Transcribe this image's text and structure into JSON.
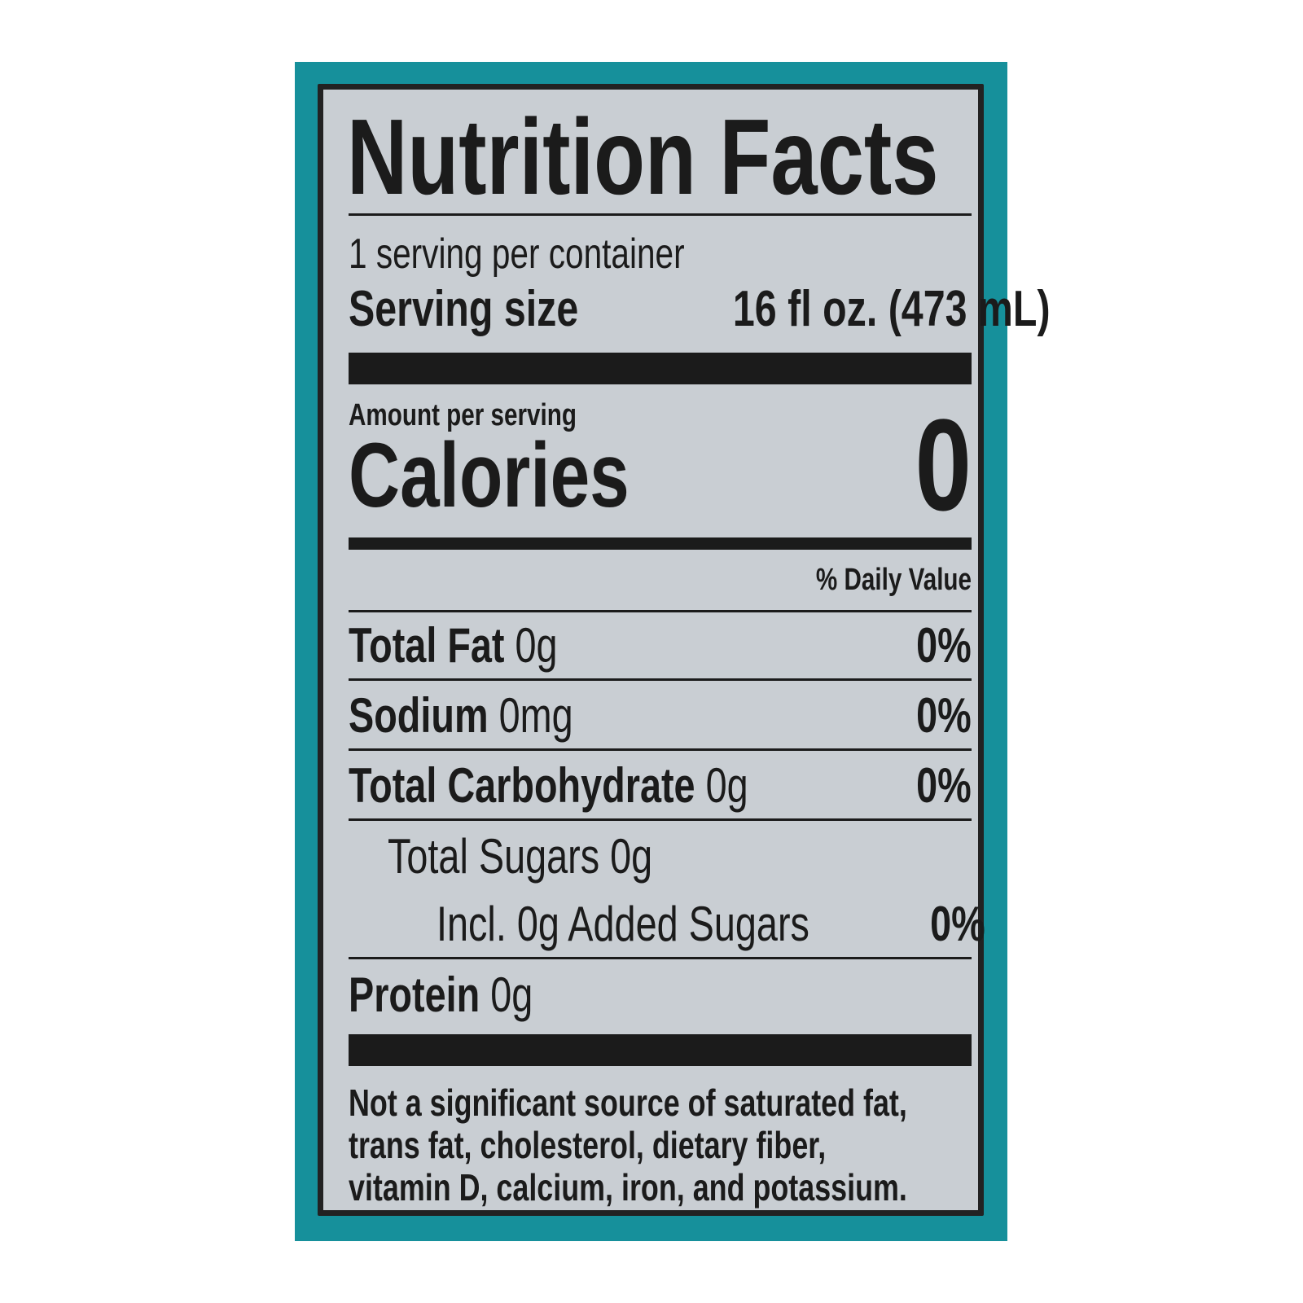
{
  "colors": {
    "frame": "#16909b",
    "border": "#222222",
    "label_bg": "#c9ced3",
    "text": "#1b1b1b"
  },
  "title": "Nutrition Facts",
  "servings_per_container": "1 serving per container",
  "serving_size": {
    "label": "Serving size",
    "value": "16 fl oz. (473 mL)"
  },
  "amount_per_serving": "Amount per serving",
  "calories": {
    "label": "Calories",
    "value": "0"
  },
  "daily_value_header": "% Daily Value",
  "nutrients": [
    {
      "name": "Total Fat",
      "amount": "0g",
      "dv": "0%"
    },
    {
      "name": "Sodium",
      "amount": "0mg",
      "dv": "0%"
    },
    {
      "name": "Total Carbohydrate",
      "amount": "0g",
      "dv": "0%"
    },
    {
      "name": "Total Sugars",
      "amount": "0g",
      "dv": ""
    },
    {
      "name": "Incl. 0g Added Sugars",
      "amount": "",
      "dv": "0%"
    },
    {
      "name": "Protein",
      "amount": "0g",
      "dv": ""
    }
  ],
  "footnote": [
    "Not a significant source of saturated fat,",
    "trans fat, cholesterol, dietary fiber,",
    "vitamin D, calcium, iron, and potassium."
  ]
}
